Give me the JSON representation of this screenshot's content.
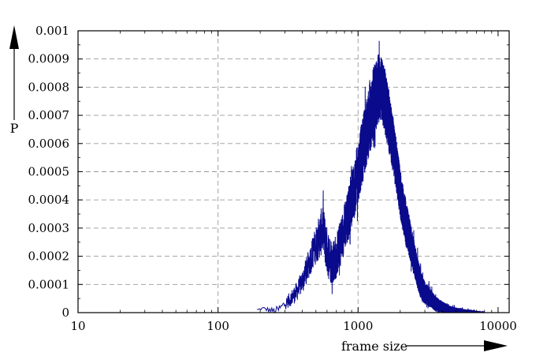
{
  "chart_data": {
    "type": "line",
    "title": "",
    "xlabel": "frame size",
    "ylabel": "P",
    "x_scale": "log",
    "xlim": [
      10,
      12000
    ],
    "ylim": [
      0,
      0.001
    ],
    "grid": true,
    "x_ticks": [
      10,
      100,
      1000,
      10000
    ],
    "x_tick_labels": [
      "10",
      "100",
      "1000",
      "10000"
    ],
    "y_ticks": [
      0,
      0.0001,
      0.0002,
      0.0003,
      0.0004,
      0.0005,
      0.0006,
      0.0007,
      0.0008,
      0.0009,
      0.001
    ],
    "y_tick_labels": [
      "0",
      "0.0001",
      "0.0002",
      "0.0003",
      "0.0004",
      "0.0005",
      "0.0006",
      "0.0007",
      "0.0008",
      "0.0009",
      "0.001"
    ],
    "series": [
      {
        "color": "#0a0a8c",
        "points": [
          [
            190,
            1e-05
          ],
          [
            210,
            1.5e-05
          ],
          [
            230,
            1e-05
          ],
          [
            250,
            5e-06
          ],
          [
            270,
            1e-05
          ],
          [
            300,
            3e-05
          ],
          [
            330,
            5e-05
          ],
          [
            360,
            7e-05
          ],
          [
            390,
            0.0001
          ],
          [
            420,
            0.00014
          ],
          [
            450,
            0.00018
          ],
          [
            480,
            0.00022
          ],
          [
            520,
            0.00026
          ],
          [
            560,
            0.0003
          ],
          [
            600,
            0.00022
          ],
          [
            650,
            0.00018
          ],
          [
            700,
            0.0002
          ],
          [
            750,
            0.00025
          ],
          [
            800,
            0.0003
          ],
          [
            850,
            0.00035
          ],
          [
            900,
            0.0004
          ],
          [
            950,
            0.00045
          ],
          [
            1000,
            0.0005
          ],
          [
            1050,
            0.00055
          ],
          [
            1100,
            0.0006
          ],
          [
            1200,
            0.00068
          ],
          [
            1300,
            0.00075
          ],
          [
            1400,
            0.0008
          ],
          [
            1500,
            0.00078
          ],
          [
            1600,
            0.00072
          ],
          [
            1700,
            0.00065
          ],
          [
            1800,
            0.00058
          ],
          [
            1900,
            0.0005
          ],
          [
            2000,
            0.00042
          ],
          [
            2200,
            0.00032
          ],
          [
            2400,
            0.00024
          ],
          [
            2600,
            0.00016
          ],
          [
            2800,
            0.0001
          ],
          [
            3000,
            7e-05
          ],
          [
            3300,
            5e-05
          ],
          [
            3600,
            3e-05
          ],
          [
            4000,
            2e-05
          ],
          [
            4500,
            1e-05
          ],
          [
            5000,
            8e-06
          ],
          [
            6000,
            4e-06
          ],
          [
            7000,
            2e-06
          ],
          [
            8000,
            1e-06
          ]
        ],
        "spread": [
          [
            190,
            2e-06
          ],
          [
            300,
            2e-05
          ],
          [
            390,
            4e-05
          ],
          [
            480,
            6e-05
          ],
          [
            560,
            9e-05
          ],
          [
            700,
            8e-05
          ],
          [
            900,
            0.0001
          ],
          [
            1100,
            0.00012
          ],
          [
            1300,
            0.00013
          ],
          [
            1500,
            0.00012
          ],
          [
            1800,
            0.0001
          ],
          [
            2200,
            8e-05
          ],
          [
            2600,
            6e-05
          ],
          [
            3000,
            4e-05
          ],
          [
            4000,
            2e-05
          ],
          [
            5000,
            1e-05
          ],
          [
            8000,
            2e-06
          ]
        ]
      }
    ]
  }
}
